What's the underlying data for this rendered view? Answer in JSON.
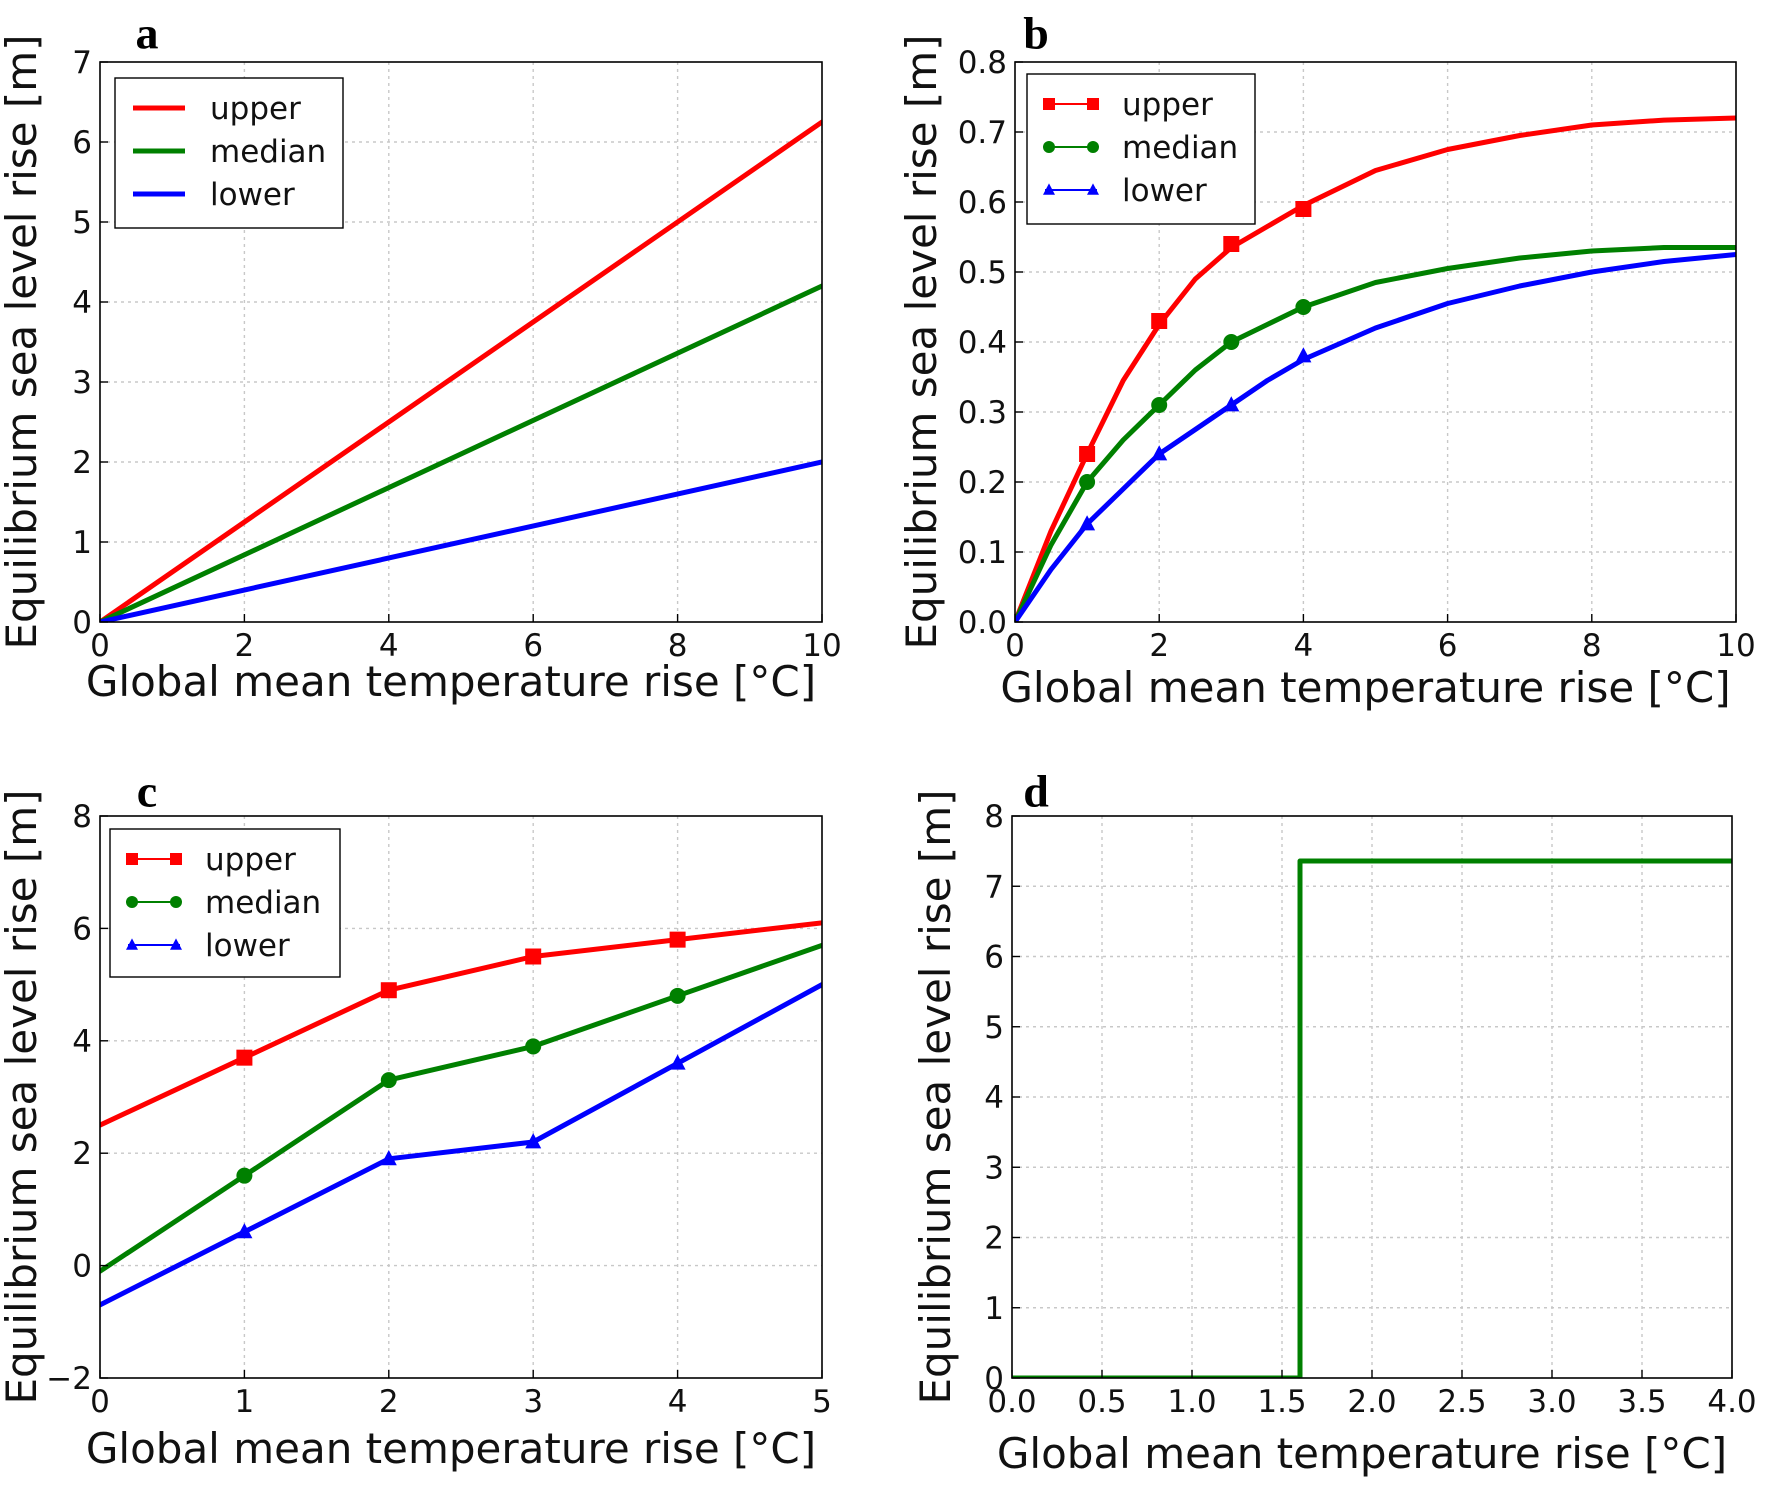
{
  "chart_data": [
    {
      "panel": "a",
      "type": "line",
      "xlabel": "Global mean temperature rise [°C]",
      "ylabel": "Equilibrium sea level rise [m]",
      "xlim": [
        0,
        10
      ],
      "ylim": [
        0,
        7
      ],
      "xticks": [
        0,
        2,
        4,
        6,
        8,
        10
      ],
      "xtick_labels": [
        "0",
        "2",
        "4",
        "6",
        "8",
        "10"
      ],
      "yticks": [
        0,
        1,
        2,
        3,
        4,
        5,
        6,
        7
      ],
      "ytick_labels": [
        "0",
        "1",
        "2",
        "3",
        "4",
        "5",
        "6",
        "7"
      ],
      "grid": true,
      "legend": "top-left",
      "series": [
        {
          "name": "upper",
          "color": "#ff0000",
          "marker": "none",
          "x": [
            0,
            10
          ],
          "y": [
            0,
            6.25
          ]
        },
        {
          "name": "median",
          "color": "#008000",
          "marker": "none",
          "x": [
            0,
            10
          ],
          "y": [
            0,
            4.2
          ]
        },
        {
          "name": "lower",
          "color": "#0000ff",
          "marker": "none",
          "x": [
            0,
            10
          ],
          "y": [
            0,
            2.0
          ]
        }
      ]
    },
    {
      "panel": "b",
      "type": "line",
      "xlabel": "Global mean temperature rise [°C]",
      "ylabel": "Equilibrium sea level rise [m]",
      "xlim": [
        0,
        10
      ],
      "ylim": [
        0,
        0.8
      ],
      "xticks": [
        0,
        2,
        4,
        6,
        8,
        10
      ],
      "xtick_labels": [
        "0",
        "2",
        "4",
        "6",
        "8",
        "10"
      ],
      "yticks": [
        0,
        0.1,
        0.2,
        0.3,
        0.4,
        0.5,
        0.6,
        0.7,
        0.8
      ],
      "ytick_labels": [
        "0.0",
        "0.1",
        "0.2",
        "0.3",
        "0.4",
        "0.5",
        "0.6",
        "0.7",
        "0.8"
      ],
      "grid": true,
      "legend": "top-left",
      "series": [
        {
          "name": "upper",
          "color": "#ff0000",
          "marker": "square",
          "x": [
            0,
            0.5,
            1,
            1.5,
            2,
            2.5,
            3,
            3.5,
            4,
            5,
            6,
            7,
            8,
            9,
            10
          ],
          "y": [
            0,
            0.13,
            0.24,
            0.345,
            0.425,
            0.49,
            0.535,
            0.565,
            0.595,
            0.645,
            0.675,
            0.695,
            0.71,
            0.717,
            0.72
          ],
          "marker_x": [
            1,
            2,
            3,
            4
          ],
          "marker_y": [
            0.24,
            0.43,
            0.54,
            0.59
          ]
        },
        {
          "name": "median",
          "color": "#008000",
          "marker": "circle",
          "x": [
            0,
            0.5,
            1,
            1.5,
            2,
            2.5,
            3,
            3.5,
            4,
            5,
            6,
            7,
            8,
            9,
            10
          ],
          "y": [
            0,
            0.11,
            0.2,
            0.26,
            0.31,
            0.36,
            0.4,
            0.425,
            0.45,
            0.485,
            0.505,
            0.52,
            0.53,
            0.535,
            0.535
          ],
          "marker_x": [
            1,
            2,
            3,
            4
          ],
          "marker_y": [
            0.2,
            0.31,
            0.4,
            0.45
          ]
        },
        {
          "name": "lower",
          "color": "#0000ff",
          "marker": "triangle",
          "x": [
            0,
            0.5,
            1,
            1.5,
            2,
            2.5,
            3,
            3.5,
            4,
            5,
            6,
            7,
            8,
            9,
            10
          ],
          "y": [
            0,
            0.075,
            0.14,
            0.19,
            0.24,
            0.275,
            0.31,
            0.345,
            0.375,
            0.42,
            0.455,
            0.48,
            0.5,
            0.515,
            0.525
          ],
          "marker_x": [
            1,
            2,
            3,
            4
          ],
          "marker_y": [
            0.14,
            0.24,
            0.31,
            0.38
          ]
        }
      ]
    },
    {
      "panel": "c",
      "type": "line",
      "xlabel": "Global mean temperature rise [°C]",
      "ylabel": "Equilibrium sea level rise [m]",
      "xlim": [
        0,
        5
      ],
      "ylim": [
        -2,
        8
      ],
      "xticks": [
        0,
        1,
        2,
        3,
        4,
        5
      ],
      "xtick_labels": [
        "0",
        "1",
        "2",
        "3",
        "4",
        "5"
      ],
      "yticks": [
        -2,
        0,
        2,
        4,
        6,
        8
      ],
      "ytick_labels": [
        "−2",
        "0",
        "2",
        "4",
        "6",
        "8"
      ],
      "grid": true,
      "legend": "top-left",
      "series": [
        {
          "name": "upper",
          "color": "#ff0000",
          "marker": "square",
          "x": [
            0,
            1,
            2,
            3,
            4,
            5
          ],
          "y": [
            2.5,
            3.7,
            4.9,
            5.5,
            5.8,
            6.1
          ],
          "marker_x": [
            1,
            2,
            3,
            4
          ],
          "marker_y": [
            3.7,
            4.9,
            5.5,
            5.8
          ]
        },
        {
          "name": "median",
          "color": "#008000",
          "marker": "circle",
          "x": [
            0,
            1,
            2,
            3,
            4,
            5
          ],
          "y": [
            -0.1,
            1.6,
            3.3,
            3.9,
            4.8,
            5.7
          ],
          "marker_x": [
            1,
            2,
            3,
            4
          ],
          "marker_y": [
            1.6,
            3.3,
            3.9,
            4.8
          ]
        },
        {
          "name": "lower",
          "color": "#0000ff",
          "marker": "triangle",
          "x": [
            0,
            1,
            2,
            3,
            4,
            5
          ],
          "y": [
            -0.7,
            0.6,
            1.9,
            2.2,
            3.6,
            5.0
          ],
          "marker_x": [
            1,
            2,
            3,
            4
          ],
          "marker_y": [
            0.6,
            1.9,
            2.2,
            3.6
          ]
        }
      ]
    },
    {
      "panel": "d",
      "type": "line",
      "xlabel": "Global mean temperature rise [°C]",
      "ylabel": "Equilibrium sea level rise [m]",
      "xlim": [
        0,
        4
      ],
      "ylim": [
        0,
        8
      ],
      "xticks": [
        0,
        0.5,
        1,
        1.5,
        2,
        2.5,
        3,
        3.5,
        4
      ],
      "xtick_labels": [
        "0.0",
        "0.5",
        "1.0",
        "1.5",
        "2.0",
        "2.5",
        "3.0",
        "3.5",
        "4.0"
      ],
      "yticks": [
        0,
        1,
        2,
        3,
        4,
        5,
        6,
        7,
        8
      ],
      "ytick_labels": [
        "0",
        "1",
        "2",
        "3",
        "4",
        "5",
        "6",
        "7",
        "8"
      ],
      "grid": true,
      "series": [
        {
          "color": "#008000",
          "marker": "none",
          "x": [
            0,
            1.6,
            1.6,
            4
          ],
          "y": [
            0,
            0,
            7.36,
            7.36
          ]
        }
      ]
    }
  ]
}
